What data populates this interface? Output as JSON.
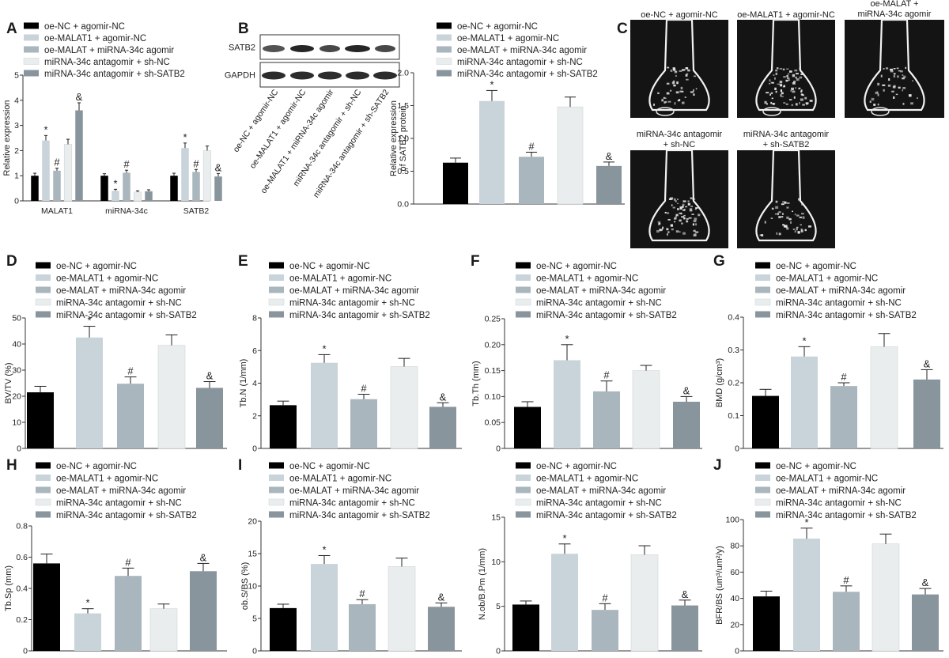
{
  "groups": [
    "oe-NC + agomir-NC",
    "oe-MALAT1 + agomir-NC",
    "oe-MALAT + miRNA-34c agomir",
    "miRNA-34c antagomir + sh-NC",
    "miRNA-34c antagomir + sh-SATB2"
  ],
  "colors": [
    "#000000",
    "#c8d3da",
    "#a9b6bd",
    "#e9eded",
    "#89959d"
  ],
  "panel_letters": {
    "A": "A",
    "B": "B",
    "C": "C",
    "D": "D",
    "E": "E",
    "F": "F",
    "G": "G",
    "H": "H",
    "I": "I",
    "J": "J"
  },
  "blot": {
    "rows": [
      "SATB2",
      "GAPDH"
    ],
    "lanes": [
      "oe-NC + agomir-NC",
      "oe-MALAT1 + agomir-NC",
      "oe-MALAT1 + miRNA-34c agomir",
      "miRNA-34c antagomir + sh-NC",
      "miRNA-34c antagomir + sh-SATB2"
    ]
  },
  "micro": {
    "captions": [
      [
        "oe-NC + agomir-NC"
      ],
      [
        "oe-MALAT1 + agomir-NC"
      ],
      [
        "oe-MALAT +",
        "miRNA-34c agomir"
      ],
      [
        "miRNA-34c antagomir",
        "+ sh-NC"
      ],
      [
        "miRNA-34c antagomir",
        "+ sh-SATB2"
      ]
    ]
  },
  "chart_data": [
    {
      "id": "A",
      "type": "bar",
      "ylabel": "Relative expression",
      "ylim": [
        0,
        5
      ],
      "yticks": [
        0,
        1,
        2,
        3,
        4,
        5
      ],
      "categories": [
        "MALAT1",
        "miRNA-34c",
        "SATB2"
      ],
      "series": [
        {
          "values": [
            1.0,
            1.0,
            1.0
          ],
          "errors": [
            0.1,
            0.08,
            0.1
          ],
          "marks": [
            "",
            "",
            ""
          ]
        },
        {
          "values": [
            2.4,
            0.4,
            2.1
          ],
          "errors": [
            0.2,
            0.06,
            0.2
          ],
          "marks": [
            "*",
            "*",
            "*"
          ]
        },
        {
          "values": [
            1.2,
            1.12,
            1.15
          ],
          "errors": [
            0.1,
            0.1,
            0.1
          ],
          "marks": [
            "#",
            "#",
            "#"
          ]
        },
        {
          "values": [
            2.25,
            0.35,
            2.0
          ],
          "errors": [
            0.2,
            0.05,
            0.18
          ],
          "marks": [
            "",
            "",
            ""
          ]
        },
        {
          "values": [
            3.6,
            0.38,
            0.97
          ],
          "errors": [
            0.3,
            0.06,
            0.12
          ],
          "marks": [
            "&",
            "",
            "&"
          ]
        }
      ]
    },
    {
      "id": "B",
      "type": "bar",
      "ylabel": "Relative expression of SATB2 protein",
      "ylim": [
        0,
        2.0
      ],
      "yticks": [
        "0.0",
        "0.5",
        "1.0",
        "1.5",
        "2.0"
      ],
      "values": [
        0.63,
        1.57,
        0.72,
        1.48,
        0.58
      ],
      "errors": [
        0.07,
        0.16,
        0.07,
        0.15,
        0.06
      ],
      "marks": [
        "",
        "*",
        "#",
        "",
        "&"
      ]
    },
    {
      "id": "D",
      "type": "bar",
      "ylabel": "BV/TV (%)",
      "ylim": [
        0,
        50
      ],
      "yticks": [
        0,
        10,
        20,
        30,
        40,
        50
      ],
      "values": [
        21.5,
        42.5,
        24.8,
        39.5,
        23.2
      ],
      "errors": [
        2.3,
        4.3,
        2.6,
        4.0,
        2.4
      ],
      "marks": [
        "",
        "*",
        "#",
        "",
        "&"
      ]
    },
    {
      "id": "E",
      "type": "bar",
      "ylabel": "Tb.N (1/mm)",
      "ylim": [
        0,
        8
      ],
      "yticks": [
        0,
        2,
        4,
        6,
        8
      ],
      "values": [
        2.65,
        5.25,
        3.02,
        5.02,
        2.55
      ],
      "errors": [
        0.25,
        0.5,
        0.3,
        0.5,
        0.25
      ],
      "marks": [
        "",
        "*",
        "#",
        "",
        "&"
      ]
    },
    {
      "id": "F",
      "type": "bar",
      "ylabel": "Tb.Th (mm)",
      "ylim": [
        0,
        0.25
      ],
      "yticks": [
        "0",
        "0.05",
        "0.10",
        "0.15",
        "0.20",
        "0.25"
      ],
      "values": [
        0.08,
        0.17,
        0.11,
        0.15,
        0.09
      ],
      "errors": [
        0.01,
        0.03,
        0.02,
        0.01,
        0.01
      ],
      "marks": [
        "",
        "*",
        "#",
        "",
        "&"
      ]
    },
    {
      "id": "G",
      "type": "bar",
      "ylabel": "BMD (g/cm³)",
      "ylim": [
        0,
        0.4
      ],
      "yticks": [
        "0",
        "0.1",
        "0.2",
        "0.3",
        "0.4"
      ],
      "values": [
        0.16,
        0.28,
        0.19,
        0.31,
        0.21
      ],
      "errors": [
        0.02,
        0.03,
        0.01,
        0.04,
        0.03
      ],
      "marks": [
        "",
        "*",
        "#",
        "",
        "&"
      ]
    },
    {
      "id": "H",
      "type": "bar",
      "ylabel": "Tb.Sp (mm)",
      "ylim": [
        0,
        0.8
      ],
      "yticks": [
        "0",
        "0.2",
        "0.4",
        "0.6",
        "0.8"
      ],
      "values": [
        0.56,
        0.24,
        0.48,
        0.27,
        0.51
      ],
      "errors": [
        0.06,
        0.03,
        0.05,
        0.03,
        0.05
      ],
      "marks": [
        "",
        "*",
        "#",
        "",
        "&"
      ]
    },
    {
      "id": "I",
      "type": "bar",
      "ylabel": "ob.S/BS (%)",
      "ylim": [
        0,
        20
      ],
      "yticks": [
        0,
        5,
        10,
        15,
        20
      ],
      "values": [
        6.6,
        13.4,
        7.2,
        13.0,
        6.8
      ],
      "errors": [
        0.6,
        1.3,
        0.7,
        1.3,
        0.6
      ],
      "marks": [
        "",
        "*",
        "#",
        "",
        "&"
      ]
    },
    {
      "id": "I2",
      "type": "bar",
      "ylabel": "N.ob/B.Pm (1/mm)",
      "ylim": [
        0,
        15
      ],
      "yticks": [
        0,
        5,
        10,
        15
      ],
      "values": [
        5.2,
        10.9,
        4.6,
        10.8,
        5.1
      ],
      "errors": [
        0.4,
        1.1,
        0.7,
        1.0,
        0.6
      ],
      "marks": [
        "",
        "*",
        "#",
        "",
        "&"
      ]
    },
    {
      "id": "J",
      "type": "bar",
      "ylabel": "BFR/BS (um³/um²/y)",
      "ylim": [
        0,
        100
      ],
      "yticks": [
        0,
        20,
        40,
        60,
        80,
        100
      ],
      "values": [
        41.5,
        85.5,
        45.0,
        81.5,
        43.0
      ],
      "errors": [
        4.0,
        8.0,
        4.5,
        7.5,
        4.5
      ],
      "marks": [
        "",
        "*",
        "#",
        "",
        "&"
      ]
    }
  ]
}
